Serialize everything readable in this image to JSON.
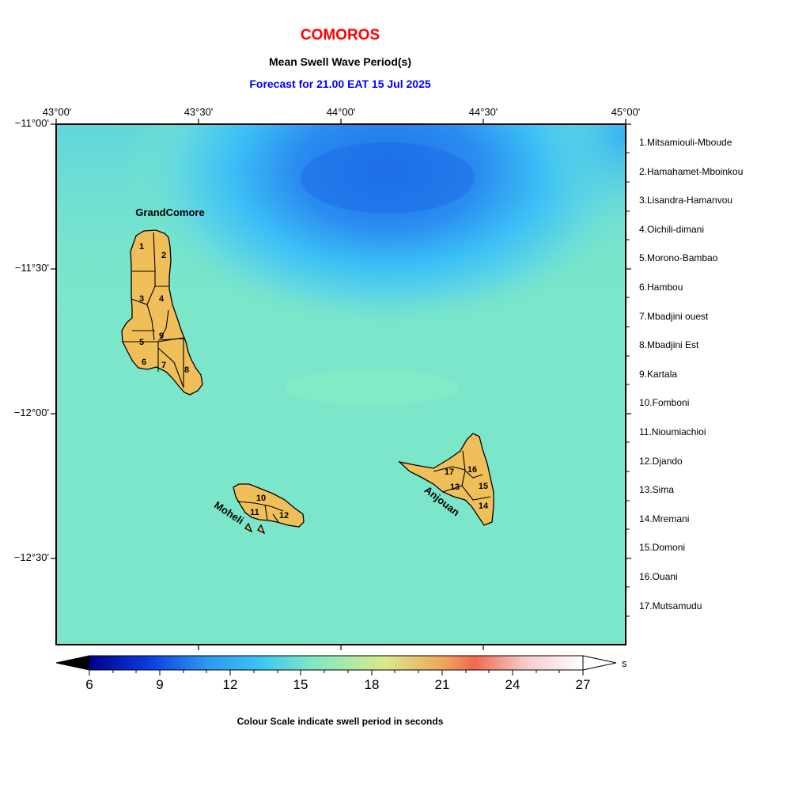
{
  "header": {
    "country": "COMOROS",
    "parameter": "Mean Swell Wave Period(s)",
    "forecast": "Forecast for  21.00 EAT 15 Jul 2025"
  },
  "axes": {
    "longitudes": [
      "43°00'",
      "43°30'",
      "44°00'",
      "44°30'",
      "45°00'"
    ],
    "latitudes": [
      "−11°00'",
      "−11°30'",
      "−12°00'",
      "−12°30'"
    ]
  },
  "islands": {
    "grand_comore": "GrandComore",
    "moheli": "Moheli",
    "anjouan": "Anjouan",
    "fill_color": "#f0bf5a",
    "district_numbers": [
      "1",
      "2",
      "3",
      "4",
      "5",
      "6",
      "7",
      "8",
      "9",
      "10",
      "11",
      "12",
      "13",
      "14",
      "15",
      "16",
      "17"
    ]
  },
  "legend": {
    "items": [
      "1.Mitsamiouli-Mboude",
      "2.Hamahamet-Mboinkou",
      "3.Lisandra-Hamanvou",
      "4.Oichili-dimani",
      "5.Morono-Bambao",
      "6.Hambou",
      "7.Mbadjini ouest",
      "8.Mbadjini Est",
      "9.Kartala",
      "10.Fomboni",
      "11.Nioumiachioi",
      "12.Djando",
      "13.Sima",
      "14.Mremani",
      "15.Domoni",
      "16.Ouani",
      "17.Mutsamudu"
    ]
  },
  "colorbar": {
    "ticks": [
      "6",
      "9",
      "12",
      "15",
      "18",
      "21",
      "24",
      "27"
    ],
    "unit": "s",
    "caption": "Colour Scale indicate swell period in seconds",
    "colors": [
      "#00008c",
      "#0a3ce0",
      "#2f98f2",
      "#3ec6f5",
      "#7ee8c4",
      "#d9e98a",
      "#f0a35a",
      "#ee6a50",
      "#f7c8c8",
      "#ffffff"
    ]
  },
  "field": {
    "background_color": "#7be6c9",
    "min_period_color": "#2278ea"
  }
}
